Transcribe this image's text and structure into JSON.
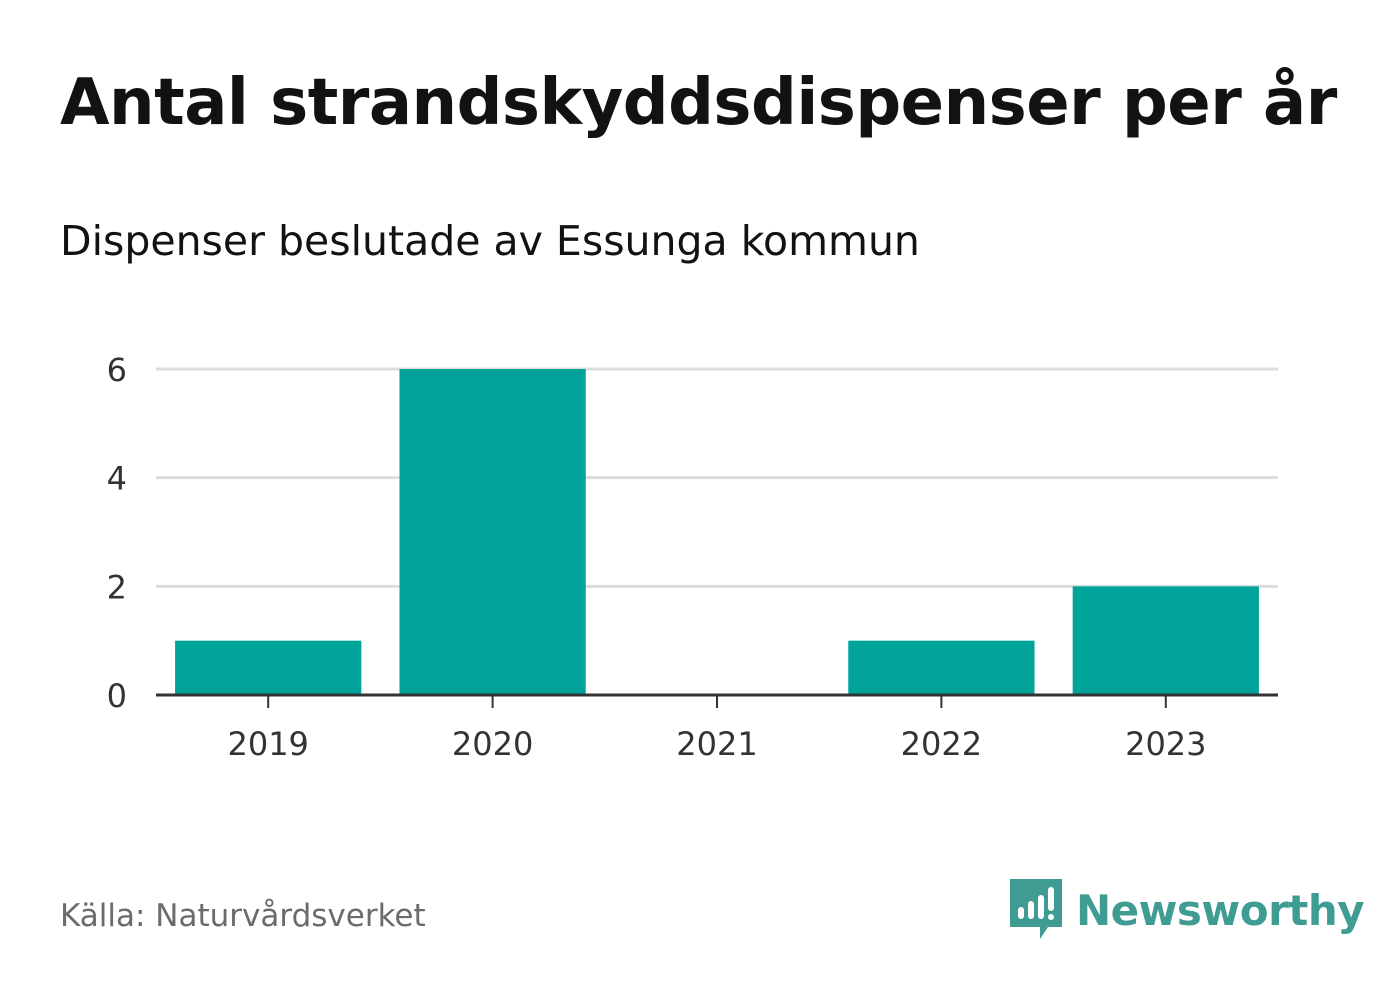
{
  "header": {
    "title": "Antal strandskyddsdispenser per år",
    "subtitle": "Dispenser beslutade av Essunga kommun"
  },
  "footer": {
    "source": "Källa: Naturvårdsverket",
    "brand": "Newsworthy",
    "brand_icon": "bar-chart-speech-bubble-icon"
  },
  "colors": {
    "bar": "#00a39a",
    "brand": "#3f9c93",
    "grid": "#dddddd",
    "axis": "#333333",
    "tick_text": "#333333"
  },
  "chart_data": {
    "type": "bar",
    "title": "Antal strandskyddsdispenser per år",
    "subtitle": "Dispenser beslutade av Essunga kommun",
    "categories": [
      "2019",
      "2020",
      "2021",
      "2022",
      "2023"
    ],
    "values": [
      1,
      6,
      0,
      1,
      2
    ],
    "yticks": [
      0,
      2,
      4,
      6
    ],
    "ylim": [
      0,
      6
    ],
    "xlabel": "",
    "ylabel": "",
    "grid": true,
    "legend": "none"
  }
}
